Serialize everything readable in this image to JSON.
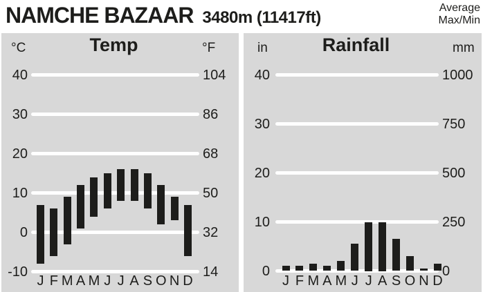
{
  "header": {
    "title": "NAMCHE BAZAAR",
    "elevation": "3480m (11417ft)",
    "legend": [
      "Average",
      "Max/Min"
    ]
  },
  "colors": {
    "background": "#ffffff",
    "panel": "#d8d8d8",
    "gridline": "#ffffff",
    "bar": "#1d1d1b",
    "text": "#1d1d1b"
  },
  "months": [
    "J",
    "F",
    "M",
    "A",
    "M",
    "J",
    "J",
    "A",
    "S",
    "O",
    "N",
    "D"
  ],
  "chart_data": [
    {
      "type": "bar",
      "variant": "floating-range",
      "title": "Temp",
      "categories": [
        "J",
        "F",
        "M",
        "A",
        "M",
        "J",
        "J",
        "A",
        "S",
        "O",
        "N",
        "D"
      ],
      "series": [
        {
          "name": "average max (°C)",
          "values": [
            7,
            6,
            9,
            12,
            14,
            15,
            16,
            16,
            15,
            12,
            9,
            7
          ]
        },
        {
          "name": "average min (°C)",
          "values": [
            -8,
            -6,
            -3,
            1,
            4,
            6,
            8,
            8,
            6,
            2,
            3,
            -6
          ]
        }
      ],
      "axis_left": {
        "label": "°C",
        "ticks": [
          40,
          30,
          20,
          10,
          0,
          -10
        ]
      },
      "axis_right": {
        "label": "°F",
        "ticks": [
          104,
          86,
          68,
          50,
          32,
          14
        ]
      },
      "ylim_c": [
        -10,
        40
      ],
      "grid": "horizontal white lines",
      "legend_position": "none"
    },
    {
      "type": "bar",
      "title": "Rainfall",
      "categories": [
        "J",
        "F",
        "M",
        "A",
        "M",
        "J",
        "J",
        "A",
        "S",
        "O",
        "N",
        "D"
      ],
      "values_in": [
        1,
        1,
        1.5,
        1,
        2,
        5.5,
        10,
        10,
        6.5,
        3,
        0.5,
        1.5
      ],
      "values_mm": [
        25,
        25,
        40,
        25,
        50,
        140,
        250,
        250,
        165,
        75,
        15,
        40
      ],
      "axis_left": {
        "label": "in",
        "ticks": [
          40,
          30,
          20,
          10,
          0
        ]
      },
      "axis_right": {
        "label": "mm",
        "ticks": [
          1000,
          750,
          500,
          250,
          0
        ]
      },
      "ylim_in": [
        0,
        40
      ],
      "grid": "horizontal white lines",
      "legend_position": "none"
    }
  ]
}
